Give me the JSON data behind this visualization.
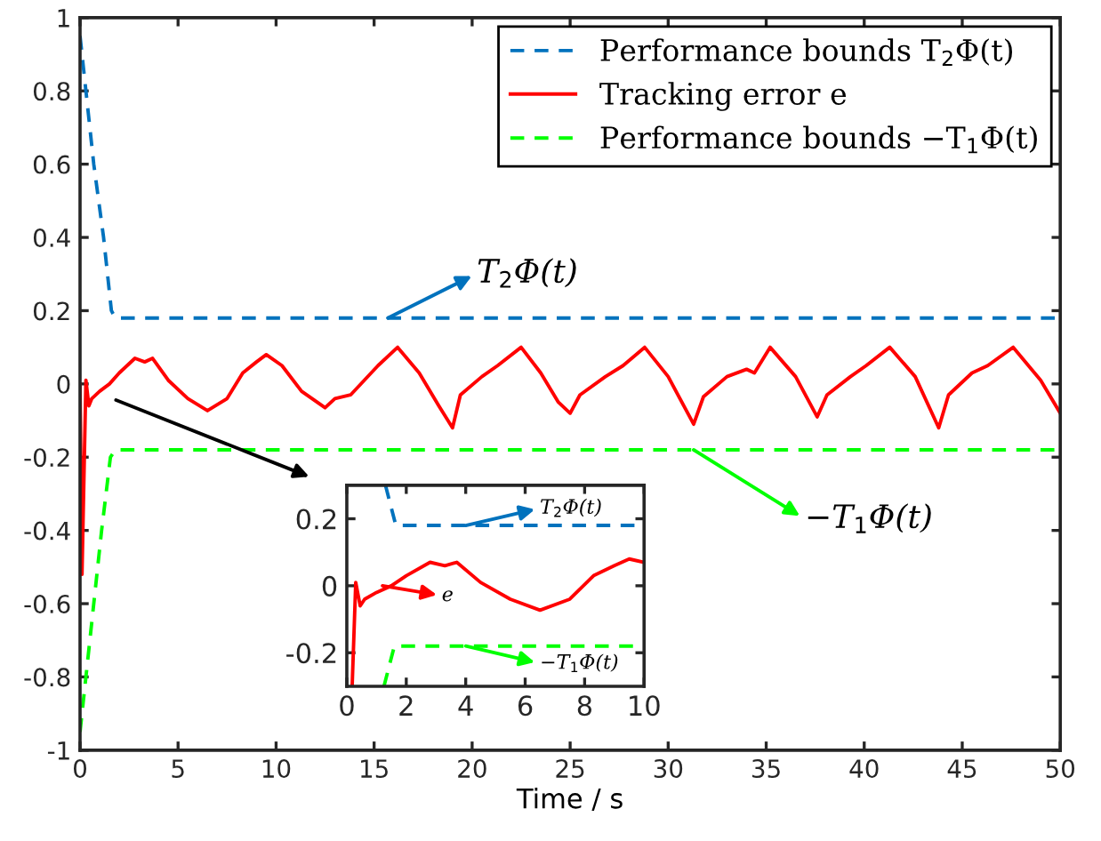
{
  "chart_data": [
    {
      "type": "line",
      "xlabel": "Time / s",
      "xlim": [
        0,
        50
      ],
      "ylim": [
        -1,
        1
      ],
      "xticks": [
        0,
        5,
        10,
        15,
        20,
        25,
        30,
        35,
        40,
        45,
        50
      ],
      "yticks": [
        -1,
        -0.8,
        -0.6,
        -0.4,
        -0.2,
        0,
        0.2,
        0.4,
        0.6,
        0.8,
        1
      ],
      "grid": false,
      "legend": "top right",
      "series": [
        {
          "name": "Performance bounds T$_{2}$Φ(t)",
          "color": "#0072bd",
          "line_style": "dashed",
          "x": [
            0,
            0.3,
            0.7,
            1.2,
            1.6,
            1.8,
            50
          ],
          "values": [
            0.95,
            0.8,
            0.6,
            0.4,
            0.2,
            0.18,
            0.18
          ]
        },
        {
          "name": "Tracking error e",
          "color": "#ff0000",
          "line_style": "solid",
          "x": [
            0,
            0.1,
            0.3,
            0.45,
            0.6,
            1.0,
            1.5,
            2.0,
            2.8,
            3.3,
            3.7,
            4.5,
            5.5,
            6.5,
            7.5,
            8.3,
            9.0,
            9.5,
            10.3,
            11.3,
            12.5,
            13.0,
            13.8,
            14.5,
            15.2,
            16.2,
            17.3,
            18.3,
            19.0,
            19.4,
            20.5,
            21.3,
            22.5,
            23.5,
            24.4,
            25.0,
            25.5,
            26.8,
            27.7,
            28.8,
            30.0,
            31.3,
            31.8,
            33.0,
            34.0,
            34.4,
            35.2,
            36.5,
            37.6,
            38.1,
            39.3,
            40.1,
            41.3,
            42.6,
            43.8,
            44.3,
            45.5,
            46.3,
            47.6,
            49.0,
            50
          ],
          "values": [
            0,
            -0.52,
            0.01,
            -0.06,
            -0.04,
            -0.02,
            0.0,
            0.03,
            0.07,
            0.06,
            0.07,
            0.01,
            -0.04,
            -0.073,
            -0.04,
            0.03,
            0.06,
            0.08,
            0.05,
            -0.02,
            -0.065,
            -0.04,
            -0.03,
            0.01,
            0.05,
            0.1,
            0.03,
            -0.06,
            -0.12,
            -0.03,
            0.02,
            0.05,
            0.1,
            0.03,
            -0.05,
            -0.08,
            -0.03,
            0.02,
            0.05,
            0.1,
            0.02,
            -0.11,
            -0.035,
            0.02,
            0.04,
            0.03,
            0.1,
            0.02,
            -0.09,
            -0.03,
            0.02,
            0.05,
            0.1,
            0.02,
            -0.12,
            -0.03,
            0.03,
            0.05,
            0.1,
            0.01,
            -0.08
          ]
        },
        {
          "name": "Performance bounds −T$_{1}$Φ(t)",
          "color": "#00ff00",
          "line_style": "dashed",
          "x": [
            0,
            0.3,
            0.7,
            1.1,
            1.55,
            1.8,
            50
          ],
          "values": [
            -0.95,
            -0.8,
            -0.6,
            -0.4,
            -0.2,
            -0.18,
            -0.18
          ]
        }
      ],
      "annotations": [
        {
          "text": "T$_{2}$Φ(t)",
          "x": 15.7,
          "y": 0.18
        },
        {
          "text": "−T$_{1}$Φ(t)",
          "x": 31.3,
          "y": -0.18
        }
      ]
    },
    {
      "type": "line",
      "xlim": [
        0,
        10
      ],
      "ylim": [
        -0.3,
        0.3
      ],
      "xticks": [
        0,
        2,
        4,
        6,
        8,
        10
      ],
      "yticks": [
        -0.2,
        0,
        0.2
      ],
      "grid": false,
      "legend": false,
      "series": [
        {
          "color": "#0072bd",
          "line_style": "dashed",
          "x": [
            1.3,
            1.65,
            10
          ],
          "values": [
            0.3,
            0.18,
            0.18
          ]
        },
        {
          "color": "#ff0000",
          "line_style": "solid",
          "x": [
            0.18,
            0.3,
            0.45,
            0.6,
            1.0,
            1.5,
            2.0,
            2.8,
            3.3,
            3.7,
            4.5,
            5.5,
            6.5,
            7.5,
            8.3,
            9.0,
            9.5,
            10.0
          ],
          "values": [
            -0.3,
            0.01,
            -0.06,
            -0.04,
            -0.02,
            0.0,
            0.03,
            0.07,
            0.06,
            0.07,
            0.01,
            -0.04,
            -0.073,
            -0.04,
            0.03,
            0.06,
            0.08,
            0.07
          ]
        },
        {
          "color": "#00ff00",
          "line_style": "dashed",
          "x": [
            1.25,
            1.6,
            10
          ],
          "values": [
            -0.3,
            -0.18,
            -0.18
          ]
        }
      ],
      "annotations": [
        {
          "text": "T$_{2}$Φ(t)",
          "x": 4.0,
          "y": 0.18
        },
        {
          "text": "e",
          "x": 1.2,
          "y": 0.0
        },
        {
          "text": "−T$_{1}$Φ(t)",
          "x": 4.0,
          "y": -0.18
        }
      ]
    }
  ]
}
